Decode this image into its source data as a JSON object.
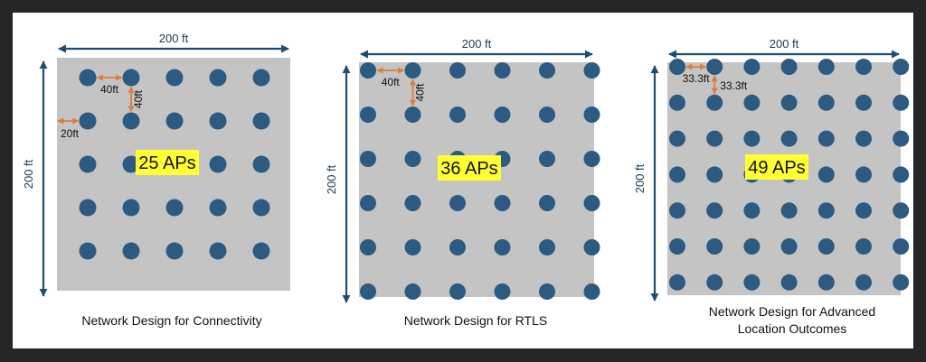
{
  "colors": {
    "floor": "#c4c4c4",
    "ap_dot": "#2d5a80",
    "dimension_arrow": "#1f4d6b",
    "spacing_arrow": "#e07b39",
    "badge": "#ffff33"
  },
  "panels": [
    {
      "id": "connectivity",
      "width_label": "200 ft",
      "height_label": "200 ft",
      "grid": 5,
      "ap_label": "25 APs",
      "spacing_labels": [
        "40ft",
        "40ft",
        "20ft"
      ],
      "caption": [
        "Network Design for Connectivity"
      ]
    },
    {
      "id": "rtls",
      "width_label": "200 ft",
      "height_label": "200 ft",
      "grid": 6,
      "ap_label": "36 APs",
      "spacing_labels": [
        "40ft",
        "40ft"
      ],
      "caption": [
        "Network Design for RTLS"
      ]
    },
    {
      "id": "advanced-location",
      "width_label": "200 ft",
      "height_label": "200 ft",
      "grid": 7,
      "ap_label": "49 APs",
      "spacing_labels": [
        "33.3ft",
        "33.3ft"
      ],
      "caption": [
        "Network Design for Advanced",
        "Location Outcomes"
      ]
    }
  ]
}
